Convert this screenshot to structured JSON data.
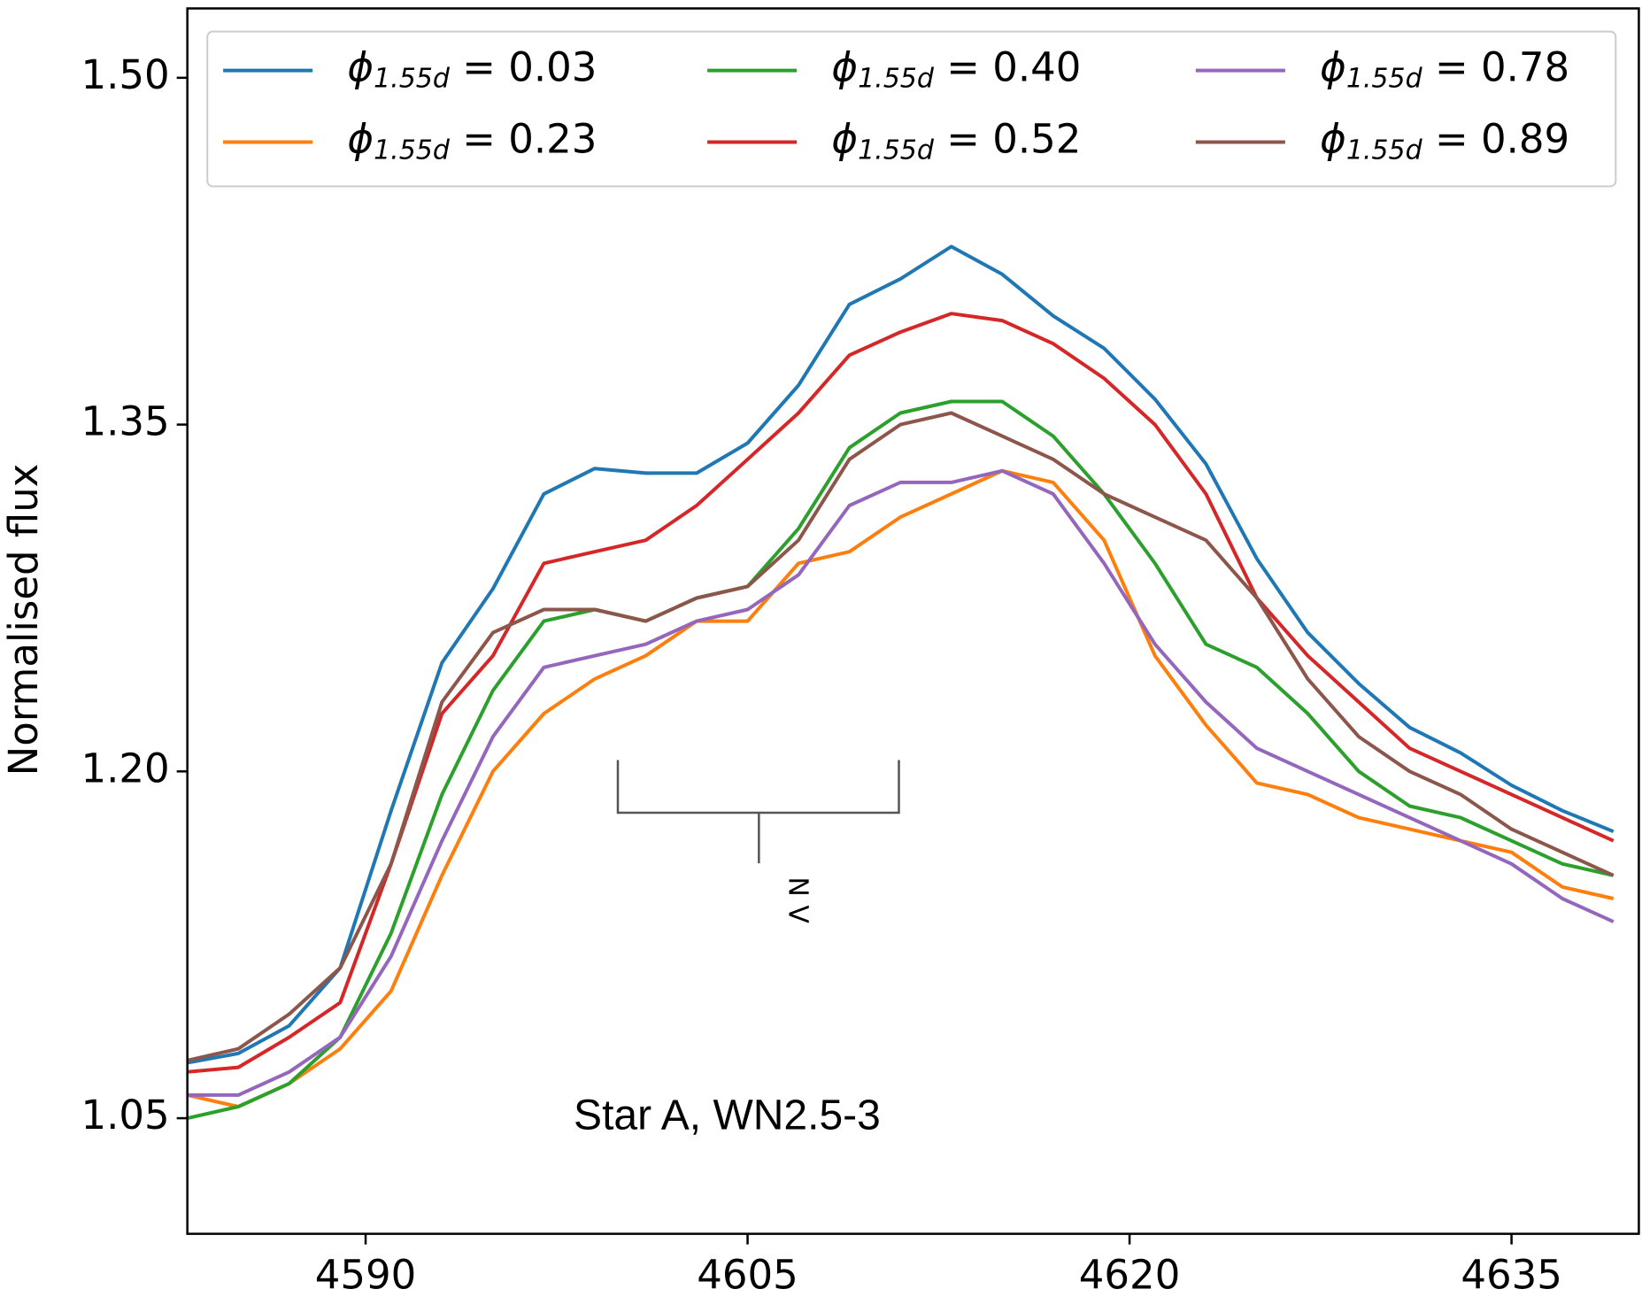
{
  "chart_data": {
    "type": "line",
    "ylabel": "Normalised flux",
    "annotations": [
      "N V",
      "Star A, WN2.5-3"
    ],
    "x": [
      4583,
      4585,
      4587,
      4589,
      4591,
      4593,
      4595,
      4597,
      4599,
      4601,
      4603,
      4605,
      4607,
      4609,
      4611,
      4613,
      4615,
      4617,
      4619,
      4621,
      4623,
      4625,
      4627,
      4629,
      4631,
      4633,
      4635,
      4637,
      4639
    ],
    "series": [
      {
        "name": "ϕ1.55d = 0.03",
        "color": "#1f77b4",
        "values": [
          1.074,
          1.078,
          1.09,
          1.115,
          1.183,
          1.247,
          1.279,
          1.32,
          1.331,
          1.329,
          1.329,
          1.342,
          1.367,
          1.402,
          1.413,
          1.427,
          1.415,
          1.397,
          1.383,
          1.361,
          1.333,
          1.292,
          1.26,
          1.238,
          1.219,
          1.208,
          1.194,
          1.183,
          1.174
        ]
      },
      {
        "name": "ϕ1.55d = 0.23",
        "color": "#ff7f0e",
        "values": [
          1.06,
          1.055,
          1.065,
          1.08,
          1.105,
          1.155,
          1.2,
          1.225,
          1.24,
          1.25,
          1.265,
          1.265,
          1.29,
          1.295,
          1.31,
          1.32,
          1.33,
          1.325,
          1.3,
          1.25,
          1.22,
          1.195,
          1.19,
          1.18,
          1.175,
          1.17,
          1.165,
          1.15,
          1.145
        ]
      },
      {
        "name": "ϕ1.55d = 0.40",
        "color": "#2ca02c",
        "values": [
          1.05,
          1.055,
          1.065,
          1.085,
          1.13,
          1.19,
          1.235,
          1.265,
          1.27,
          1.265,
          1.275,
          1.28,
          1.305,
          1.34,
          1.355,
          1.36,
          1.36,
          1.345,
          1.32,
          1.29,
          1.255,
          1.245,
          1.225,
          1.2,
          1.185,
          1.18,
          1.17,
          1.16,
          1.155
        ]
      },
      {
        "name": "ϕ1.55d = 0.52",
        "color": "#d62728",
        "values": [
          1.07,
          1.072,
          1.085,
          1.1,
          1.16,
          1.225,
          1.25,
          1.29,
          1.295,
          1.3,
          1.315,
          1.335,
          1.355,
          1.38,
          1.39,
          1.398,
          1.395,
          1.385,
          1.37,
          1.35,
          1.32,
          1.275,
          1.25,
          1.23,
          1.21,
          1.2,
          1.19,
          1.18,
          1.17
        ]
      },
      {
        "name": "ϕ1.55d = 0.78",
        "color": "#9467bd",
        "values": [
          1.06,
          1.06,
          1.07,
          1.085,
          1.12,
          1.17,
          1.215,
          1.245,
          1.25,
          1.255,
          1.265,
          1.27,
          1.285,
          1.315,
          1.325,
          1.325,
          1.33,
          1.32,
          1.29,
          1.255,
          1.23,
          1.21,
          1.2,
          1.19,
          1.18,
          1.17,
          1.16,
          1.145,
          1.135
        ]
      },
      {
        "name": "ϕ1.55d = 0.89",
        "color": "#8c564b",
        "values": [
          1.075,
          1.08,
          1.095,
          1.115,
          1.16,
          1.23,
          1.26,
          1.27,
          1.27,
          1.265,
          1.275,
          1.28,
          1.3,
          1.335,
          1.35,
          1.355,
          1.345,
          1.335,
          1.32,
          1.31,
          1.3,
          1.275,
          1.24,
          1.215,
          1.2,
          1.19,
          1.175,
          1.165,
          1.155
        ]
      }
    ],
    "xlim": [
      4583,
      4640
    ],
    "xticks": [
      4590,
      4605,
      4620,
      4635
    ],
    "ylim": [
      1.0,
      1.53
    ],
    "yticks": [
      {
        "value": 1.5,
        "label": "1.50"
      },
      1.35,
      {
        "value": 1.2,
        "label": "1.20"
      },
      1.05
    ],
    "grid": false,
    "legend": "top",
    "legend_columns": 3
  }
}
